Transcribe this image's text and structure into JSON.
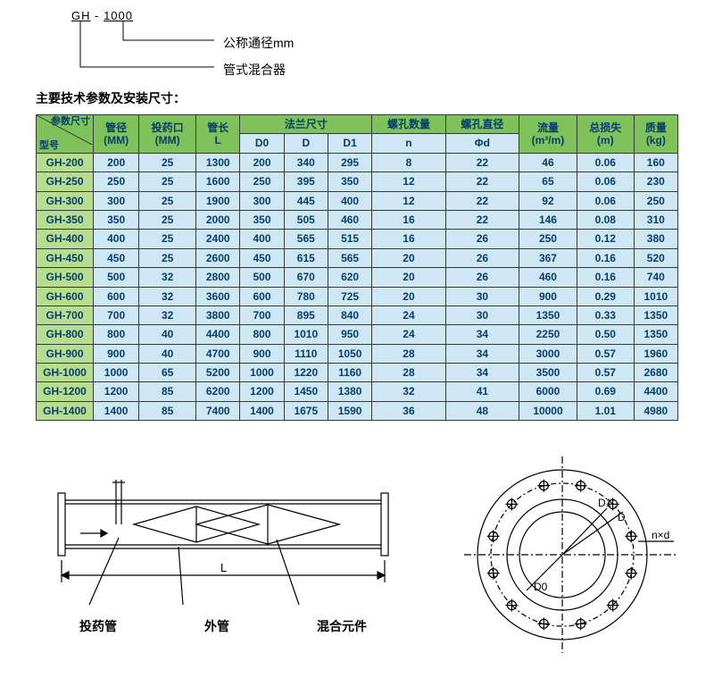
{
  "model_key": {
    "code_prefix": "GH",
    "code_dash": " - ",
    "code_num": "1000",
    "label_diameter": "公称通径mm",
    "label_mixer": "管式混合器"
  },
  "section_title": "主要技术参数及安装尺寸：",
  "table": {
    "corner_top": "参数尺寸",
    "corner_bottom": "型号",
    "headers_row1": [
      "管径\n(MM)",
      "投药口\n(MM)",
      "管长\nL",
      "法兰尺寸",
      "螺孔数量",
      "螺孔直径",
      "流量\n(m³/m)",
      "总损失\n(m)",
      "质量\n(kg)"
    ],
    "flange_sub": [
      "D0",
      "D",
      "D1"
    ],
    "hole_sub": [
      "n",
      "Φd"
    ],
    "columns": [
      "管径(MM)",
      "投药口(MM)",
      "管长L",
      "D0",
      "D",
      "D1",
      "n",
      "Φd",
      "流量(m³/m)",
      "总损失(m)",
      "质量(kg)"
    ],
    "rows": [
      [
        "GH-200",
        "200",
        "25",
        "1300",
        "200",
        "340",
        "295",
        "8",
        "22",
        "46",
        "0.06",
        "160"
      ],
      [
        "GH-250",
        "250",
        "25",
        "1600",
        "250",
        "395",
        "350",
        "12",
        "22",
        "65",
        "0.06",
        "230"
      ],
      [
        "GH-300",
        "300",
        "25",
        "1900",
        "300",
        "445",
        "400",
        "12",
        "22",
        "92",
        "0.06",
        "250"
      ],
      [
        "GH-350",
        "350",
        "25",
        "2000",
        "350",
        "505",
        "460",
        "16",
        "22",
        "146",
        "0.08",
        "310"
      ],
      [
        "GH-400",
        "400",
        "25",
        "2400",
        "400",
        "565",
        "515",
        "16",
        "26",
        "250",
        "0.12",
        "380"
      ],
      [
        "GH-450",
        "450",
        "25",
        "2600",
        "450",
        "615",
        "565",
        "20",
        "26",
        "367",
        "0.16",
        "520"
      ],
      [
        "GH-500",
        "500",
        "32",
        "2800",
        "500",
        "670",
        "620",
        "20",
        "26",
        "460",
        "0.16",
        "740"
      ],
      [
        "GH-600",
        "600",
        "32",
        "3600",
        "600",
        "780",
        "725",
        "20",
        "30",
        "900",
        "0.29",
        "1010"
      ],
      [
        "GH-700",
        "700",
        "32",
        "3800",
        "700",
        "895",
        "840",
        "24",
        "30",
        "1350",
        "0.33",
        "1350"
      ],
      [
        "GH-800",
        "800",
        "40",
        "4400",
        "800",
        "1010",
        "950",
        "24",
        "34",
        "2250",
        "0.50",
        "1350"
      ],
      [
        "GH-900",
        "900",
        "40",
        "4700",
        "900",
        "1110",
        "1050",
        "28",
        "34",
        "3000",
        "0.57",
        "1960"
      ],
      [
        "GH-1000",
        "1000",
        "65",
        "5200",
        "1000",
        "1220",
        "1160",
        "28",
        "34",
        "3500",
        "0.57",
        "2680"
      ],
      [
        "GH-1200",
        "1200",
        "85",
        "6200",
        "1200",
        "1450",
        "1380",
        "32",
        "41",
        "6000",
        "0.69",
        "4400"
      ],
      [
        "GH-1400",
        "1400",
        "85",
        "7400",
        "1400",
        "1675",
        "1590",
        "36",
        "48",
        "10000",
        "1.01",
        "4980"
      ]
    ],
    "header_bg": "#7fc25a",
    "model_col_bg": "#b7dd8f",
    "cell_bg": "#cfe7f2",
    "border_color": "#333a3c",
    "text_color": "#053d6f",
    "font_size": 12
  },
  "pipe_diagram": {
    "labels": [
      "投药管",
      "外管",
      "混合元件"
    ],
    "dim_L": "L",
    "arrow": "→",
    "stroke": "#000000",
    "stroke_width": 1.2
  },
  "flange_diagram": {
    "labels": {
      "D": "D",
      "D1": "D1",
      "D0": "D0",
      "nxd": "n×d"
    },
    "bolt_count": 12,
    "stroke": "#000000",
    "stroke_width": 1.2
  }
}
